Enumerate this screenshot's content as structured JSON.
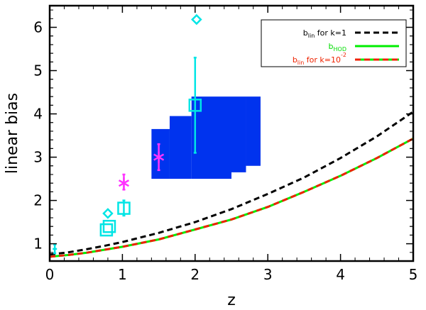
{
  "chart_data": {
    "type": "line",
    "xlabel": "z",
    "ylabel": "linear bias",
    "xlim": [
      0,
      5
    ],
    "ylim": [
      0.6,
      6.5
    ],
    "x_ticks": [
      0,
      1,
      2,
      3,
      4,
      5
    ],
    "y_ticks": [
      1,
      2,
      3,
      4,
      5,
      6
    ],
    "grid": false,
    "legend_position": "top-right",
    "legend": [
      {
        "main": "b",
        "sub": "lin",
        "rest": " for k=1",
        "sup": "",
        "text_color": "#000000",
        "line_color": "#000000",
        "dash": "dashed"
      },
      {
        "main": "b",
        "sub": "HOD",
        "rest": "",
        "sup": "",
        "text_color": "#00dd00",
        "line_color": "#00ee00",
        "dash": "solid"
      },
      {
        "main": "b",
        "sub": "lin",
        "rest": " for k=10",
        "sup": "-2",
        "text_color": "#ee2200",
        "line_color": "#ee2200",
        "dash": "dashed-over-green"
      }
    ],
    "series": [
      {
        "name": "b_lin for k=1",
        "color": "#000000",
        "x": [
          0,
          0.25,
          0.5,
          0.75,
          1,
          1.5,
          2,
          2.5,
          3,
          3.5,
          4,
          4.5,
          5
        ],
        "y": [
          0.75,
          0.8,
          0.87,
          0.95,
          1.04,
          1.25,
          1.5,
          1.8,
          2.15,
          2.53,
          2.98,
          3.48,
          4.05
        ]
      },
      {
        "name": "b_HOD",
        "color": "#00ee00",
        "x": [
          0,
          0.25,
          0.5,
          0.75,
          1,
          1.5,
          2,
          2.5,
          3,
          3.5,
          4,
          4.5,
          5
        ],
        "y": [
          0.7,
          0.74,
          0.79,
          0.86,
          0.93,
          1.1,
          1.33,
          1.56,
          1.85,
          2.2,
          2.57,
          2.98,
          3.43
        ]
      },
      {
        "name": "b_lin for k=10^-2",
        "color": "#ee2200",
        "x": [
          0,
          0.25,
          0.5,
          0.75,
          1,
          1.5,
          2,
          2.5,
          3,
          3.5,
          4,
          4.5,
          5
        ],
        "y": [
          0.7,
          0.74,
          0.79,
          0.86,
          0.93,
          1.1,
          1.33,
          1.56,
          1.85,
          2.2,
          2.57,
          2.98,
          3.43
        ]
      }
    ],
    "region": {
      "color": "#0033ee",
      "steps": [
        {
          "x0": 1.4,
          "x1": 1.65,
          "y0": 2.5,
          "y1": 3.65
        },
        {
          "x0": 1.65,
          "x1": 1.95,
          "y0": 2.5,
          "y1": 3.95
        },
        {
          "x0": 1.95,
          "x1": 2.5,
          "y0": 2.5,
          "y1": 4.4
        },
        {
          "x0": 2.5,
          "x1": 2.7,
          "y0": 2.65,
          "y1": 4.4
        },
        {
          "x0": 2.7,
          "x1": 2.9,
          "y0": 2.8,
          "y1": 4.4
        }
      ]
    },
    "points": [
      {
        "marker": "square",
        "color": "#00e5e5",
        "x": 0.78,
        "y": 1.32
      },
      {
        "marker": "square",
        "color": "#00e5e5",
        "x": 0.82,
        "y": 1.4
      },
      {
        "marker": "square",
        "color": "#00e5e5",
        "x": 1.02,
        "y": 1.82,
        "yerr": [
          1.65,
          2.0
        ]
      },
      {
        "marker": "square",
        "color": "#00e5e5",
        "x": 2.0,
        "y": 4.2,
        "yerr": [
          3.1,
          5.3
        ]
      },
      {
        "marker": "diamond",
        "color": "#00e5e5",
        "x": 0.8,
        "y": 1.7
      },
      {
        "marker": "diamond",
        "color": "#00e5e5",
        "x": 2.02,
        "y": 6.18
      },
      {
        "marker": "bar",
        "color": "#00e5e5",
        "x": 0.07,
        "y": 0.88,
        "yerr": [
          0.78,
          0.98
        ]
      },
      {
        "marker": "asterisk",
        "color": "#ff33ff",
        "x": 1.02,
        "y": 2.4,
        "yerr": [
          2.25,
          2.6
        ]
      },
      {
        "marker": "asterisk",
        "color": "#ff33ff",
        "x": 1.5,
        "y": 3.0,
        "yerr": [
          2.7,
          3.3
        ]
      }
    ]
  }
}
